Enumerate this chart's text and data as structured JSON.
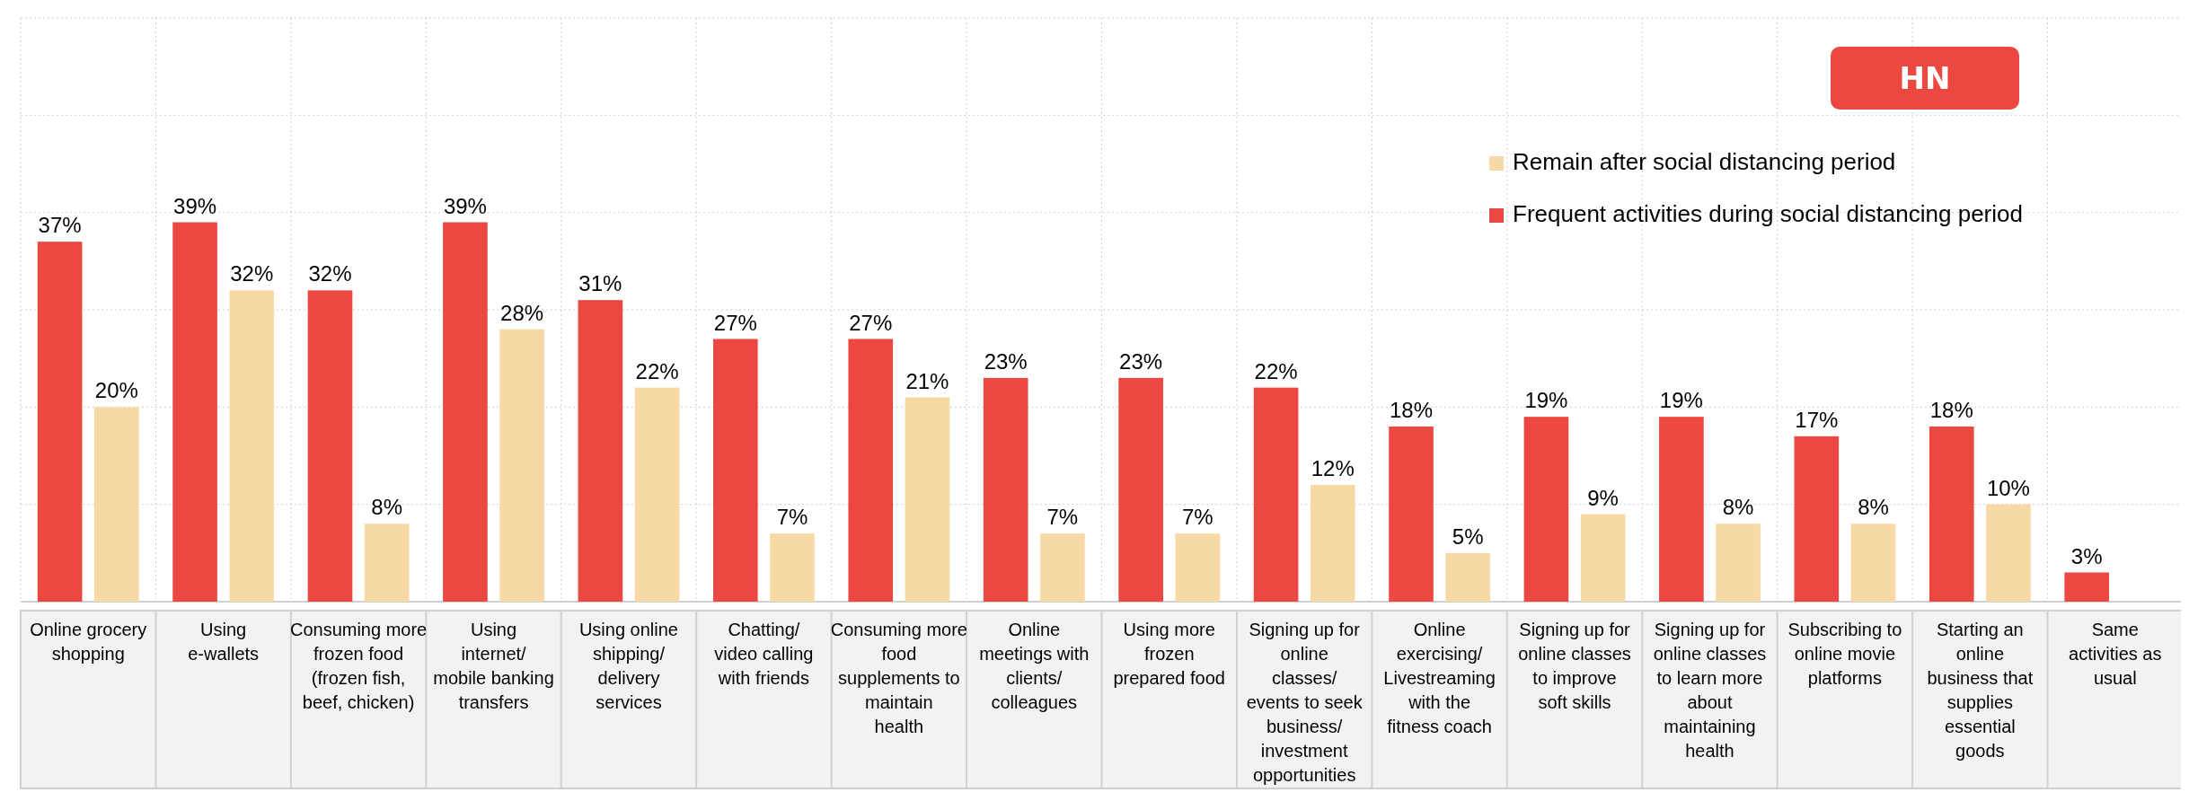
{
  "chart_data": {
    "type": "bar",
    "title": "HN",
    "categories": [
      "Online grocery shopping",
      "Using e-wallets",
      "Consuming more frozen food (frozen fish, beef, chicken)",
      "Using internet/ mobile banking transfers",
      "Using online shipping/delivery services",
      "Chatting/ video calling with friends",
      "Consuming more food supplements to maintain health",
      "Online meetings with clients/ colleagues",
      "Using more frozen prepared food",
      "Signing up for online classes/ events to seek business/ investment opportunities",
      "Online exercising/ Livestreaming with the fitness coach",
      "Signing up for online classes to improve soft skills",
      "Signing up for online classes to learn more about maintaining health",
      "Subscribing to online movie platforms",
      "Starting an online business that supplies essential goods",
      "Same activities as usual"
    ],
    "series": [
      {
        "name": "Frequent activities during social distancing period",
        "color": "#ec4842",
        "values": [
          37,
          39,
          32,
          39,
          31,
          27,
          27,
          23,
          23,
          22,
          18,
          19,
          19,
          17,
          18,
          3
        ],
        "value_labels": [
          "37%",
          "39%",
          "32%",
          "39%",
          "31%",
          "27%",
          "27%",
          "23%",
          "23%",
          "22%",
          "18%",
          "19%",
          "19%",
          "17%",
          "18%",
          "3%"
        ]
      },
      {
        "name": "Remain after social distancing period",
        "color": "#f7d9a5",
        "values": [
          20,
          32,
          8,
          28,
          22,
          7,
          21,
          7,
          7,
          12,
          5,
          9,
          8,
          8,
          10,
          null
        ],
        "value_labels": [
          "20%",
          "32%",
          "8%",
          "28%",
          "22%",
          "7%",
          "21%",
          "7%",
          "7%",
          "12%",
          "5%",
          "9%",
          "8%",
          "8%",
          "10%",
          null
        ]
      }
    ],
    "ylim": [
      0,
      60
    ],
    "yticks": [
      {
        "value": 0,
        "label": null
      },
      {
        "value": 10,
        "label": null
      },
      {
        "value": 20,
        "label": null
      },
      {
        "value": 30,
        "label": null
      },
      {
        "value": 40,
        "label": null
      },
      {
        "value": 50,
        "label": null
      },
      {
        "value": 60,
        "label": null
      }
    ],
    "tick_labels": "x",
    "grid": true,
    "legend": "top right"
  }
}
